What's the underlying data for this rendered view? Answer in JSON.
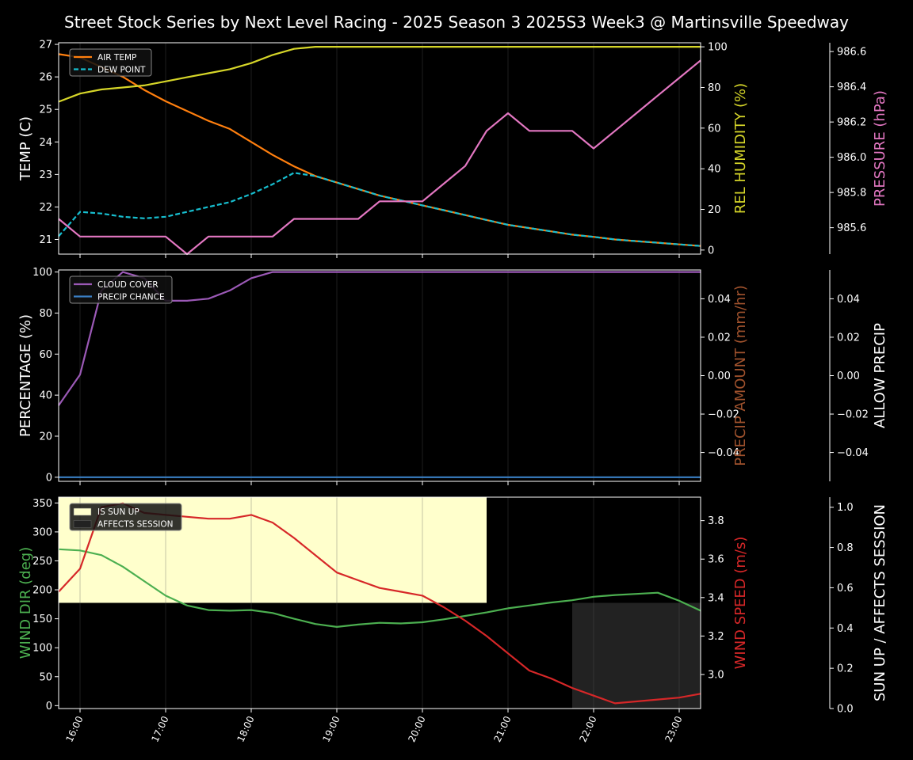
{
  "chart_data": {
    "type": "line",
    "title": "Street Stock Series by Next Level Racing - 2025 Season 3 2025S3 Week3 @ Martinsville Speedway",
    "x": [
      "15:45",
      "16:00",
      "16:15",
      "16:30",
      "16:45",
      "17:00",
      "17:15",
      "17:30",
      "17:45",
      "18:00",
      "18:15",
      "18:30",
      "18:45",
      "19:00",
      "19:15",
      "19:30",
      "19:45",
      "20:00",
      "20:15",
      "20:30",
      "20:45",
      "21:00",
      "21:15",
      "21:30",
      "21:45",
      "22:00",
      "22:15",
      "22:30",
      "22:45",
      "23:00",
      "23:15"
    ],
    "x_tick_labels": [
      "16:00",
      "17:00",
      "18:00",
      "19:00",
      "20:00",
      "21:00",
      "22:00",
      "23:00"
    ],
    "x_tick_hours": [
      16,
      17,
      18,
      19,
      20,
      21,
      22,
      23
    ],
    "x_range_hours": [
      15.75,
      23.25
    ],
    "panels": [
      {
        "name": "temperature",
        "ylabel": "TEMP (C)",
        "ylim": [
          20.55,
          27.05
        ],
        "yticks": [
          21,
          22,
          23,
          24,
          25,
          26,
          27
        ],
        "legend_position": "top-left",
        "series": [
          {
            "name": "AIR TEMP",
            "color": "#ff7f0e",
            "style": "solid",
            "axis": "temp",
            "values": [
              26.7,
              26.6,
              26.3,
              26.0,
              25.6,
              25.25,
              24.95,
              24.65,
              24.4,
              24.0,
              23.6,
              23.25,
              22.95,
              22.75,
              22.55,
              22.35,
              22.2,
              22.05,
              21.9,
              21.75,
              21.6,
              21.45,
              21.35,
              21.25,
              21.15,
              21.08,
              21.0,
              20.95,
              20.9,
              20.85,
              20.8
            ]
          },
          {
            "name": "DEW POINT",
            "color": "#17becf",
            "style": "dashed",
            "axis": "temp",
            "values": [
              21.1,
              21.85,
              21.8,
              21.7,
              21.65,
              21.7,
              21.85,
              22.0,
              22.15,
              22.4,
              22.7,
              23.05,
              22.95,
              22.75,
              22.55,
              22.35,
              22.2,
              22.05,
              21.9,
              21.75,
              21.6,
              21.45,
              21.35,
              21.25,
              21.15,
              21.08,
              21.0,
              20.95,
              20.9,
              20.85,
              20.8
            ]
          },
          {
            "name": "REL HUMIDITY",
            "color": "#d6d629",
            "style": "solid",
            "axis": "humidity",
            "values": [
              73,
              77,
              79,
              80,
              81,
              83,
              85,
              87,
              89,
              92,
              96,
              99,
              100,
              100,
              100,
              100,
              100,
              100,
              100,
              100,
              100,
              100,
              100,
              100,
              100,
              100,
              100,
              100,
              100,
              100,
              100
            ]
          },
          {
            "name": "PRESSURE",
            "color": "#e377c2",
            "style": "solid",
            "axis": "pressure",
            "values": [
              985.65,
              985.55,
              985.55,
              985.55,
              985.55,
              985.55,
              985.45,
              985.55,
              985.55,
              985.55,
              985.55,
              985.65,
              985.65,
              985.65,
              985.65,
              985.75,
              985.75,
              985.75,
              985.85,
              985.95,
              986.15,
              986.25,
              986.15,
              986.15,
              986.15,
              986.05,
              986.15,
              986.25,
              986.35,
              986.45,
              986.55
            ]
          }
        ],
        "right_axes": [
          {
            "name": "humidity",
            "label": "REL HUMIDITY (%)",
            "color": "#d6d629",
            "ylim": [
              -2,
              102
            ],
            "ticks": [
              0,
              20,
              40,
              60,
              80,
              100
            ]
          },
          {
            "name": "pressure",
            "label": "PRESSURE (hPa)",
            "color": "#e377c2",
            "ylim": [
              985.45,
              986.65
            ],
            "ticks": [
              985.6,
              985.8,
              986.0,
              986.2,
              986.4,
              986.6
            ],
            "tick_labels": [
              "985.6",
              "985.8",
              "986.0",
              "986.2",
              "986.4",
              "986.6"
            ]
          }
        ]
      },
      {
        "name": "precipitation",
        "ylabel": "PERCENTAGE (%)",
        "ylim": [
          -2,
          101
        ],
        "yticks": [
          0,
          20,
          40,
          60,
          80,
          100
        ],
        "legend_position": "top-left",
        "series": [
          {
            "name": "CLOUD COVER",
            "color": "#9b59b6",
            "style": "solid",
            "axis": "pct",
            "values": [
              35,
              50,
              91,
              100,
              97,
              86,
              86,
              87,
              91,
              97,
              100,
              100,
              100,
              100,
              100,
              100,
              100,
              100,
              100,
              100,
              100,
              100,
              100,
              100,
              100,
              100,
              100,
              100,
              100,
              100,
              100
            ]
          },
          {
            "name": "PRECIP CHANCE",
            "color": "#3a7fc4",
            "style": "solid",
            "axis": "pct",
            "values": [
              0,
              0,
              0,
              0,
              0,
              0,
              0,
              0,
              0,
              0,
              0,
              0,
              0,
              0,
              0,
              0,
              0,
              0,
              0,
              0,
              0,
              0,
              0,
              0,
              0,
              0,
              0,
              0,
              0,
              0,
              0
            ]
          }
        ],
        "right_axes": [
          {
            "name": "precip_amount",
            "label": "PRECIP AMOUNT (mm/hr)",
            "color": "#a0522d",
            "ylim": [
              -0.055,
              0.055
            ],
            "ticks": [
              -0.04,
              -0.02,
              0.0,
              0.02,
              0.04
            ],
            "tick_labels": [
              "−0.04",
              "−0.02",
              "0.00",
              "0.02",
              "0.04"
            ]
          },
          {
            "name": "allow_precip",
            "label": "ALLOW PRECIP",
            "color": "#ffffff",
            "ylim": [
              -0.055,
              0.055
            ],
            "ticks": [
              -0.04,
              -0.02,
              0.0,
              0.02,
              0.04
            ],
            "tick_labels": [
              "−0.04",
              "−0.02",
              "0.00",
              "0.02",
              "0.04"
            ]
          }
        ]
      },
      {
        "name": "wind",
        "ylabel": "WIND DIR (deg)",
        "ylabel_color": "#4caf50",
        "ylim": [
          -5,
          360
        ],
        "yticks": [
          0,
          50,
          100,
          150,
          200,
          250,
          300,
          350
        ],
        "legend_position": "top-left",
        "spans": [
          {
            "name": "IS SUN UP",
            "color": "#ffffcc",
            "x_start_hours": 15.75,
            "x_end_hours": 20.75,
            "y_range": [
              0.5,
              1.0
            ]
          },
          {
            "name": "AFFECTS SESSION",
            "color": "#222222",
            "x_start_hours": 21.75,
            "x_end_hours": 23.25,
            "y_range": [
              0.0,
              0.5
            ]
          }
        ],
        "series": [
          {
            "name": "WIND DIR",
            "color": "#4caf50",
            "style": "solid",
            "axis": "dir",
            "values": [
              270,
              268,
              260,
              240,
              215,
              190,
              173,
              165,
              164,
              165,
              160,
              150,
              141,
              136,
              140,
              143,
              142,
              144,
              149,
              155,
              161,
              168,
              173,
              178,
              182,
              188,
              191,
              193,
              195,
              181,
              164
            ]
          },
          {
            "name": "WIND SPEED",
            "color": "#d62728",
            "style": "solid",
            "axis": "speed",
            "values": [
              3.43,
              3.55,
              3.87,
              3.89,
              3.84,
              3.83,
              3.82,
              3.81,
              3.81,
              3.83,
              3.79,
              3.71,
              3.62,
              3.53,
              3.49,
              3.45,
              3.43,
              3.41,
              3.35,
              3.28,
              3.2,
              3.11,
              3.02,
              2.98,
              2.93,
              2.89,
              2.85,
              2.86,
              2.87,
              2.88,
              2.9
            ]
          }
        ],
        "right_axes": [
          {
            "name": "speed",
            "label": "WIND SPEED (m/s)",
            "color": "#d62728",
            "ylim": [
              2.823,
              3.922
            ],
            "ticks": [
              3.0,
              3.2,
              3.4,
              3.6,
              3.8
            ],
            "tick_labels": [
              "3.0",
              "3.2",
              "3.4",
              "3.6",
              "3.8"
            ]
          },
          {
            "name": "sun",
            "label": "SUN UP / AFFECTS SESSION",
            "color": "#ffffff",
            "ylim": [
              0,
              1.05
            ],
            "ticks": [
              0,
              0.2,
              0.4,
              0.6,
              0.8,
              1.0
            ],
            "tick_labels": [
              "0.0",
              "0.2",
              "0.4",
              "0.6",
              "0.8",
              "1.0"
            ]
          }
        ]
      }
    ],
    "grid": "vertical-only"
  }
}
